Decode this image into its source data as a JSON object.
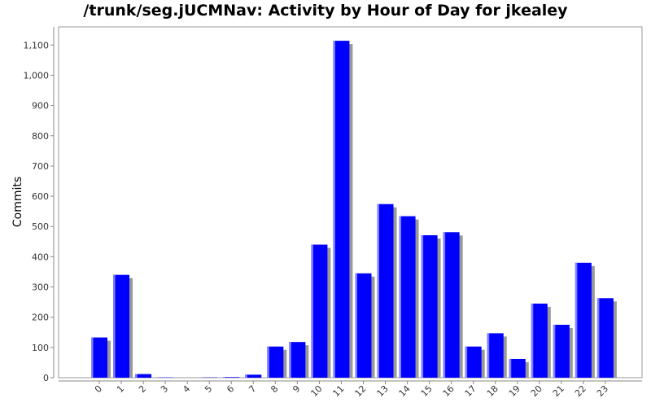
{
  "chart_data": {
    "type": "bar",
    "title": "/trunk/seg.jUCMNav: Activity by Hour of Day for jkealey",
    "xlabel": "",
    "ylabel": "Commits",
    "ylim": [
      0,
      1160
    ],
    "yticks": [
      0,
      100,
      200,
      300,
      400,
      500,
      600,
      700,
      800,
      900,
      1000,
      1100
    ],
    "ytick_labels": [
      "0",
      "100",
      "200",
      "300",
      "400",
      "500",
      "600",
      "700",
      "800",
      "900",
      "1,000",
      "1,100"
    ],
    "categories": [
      "0",
      "1",
      "2",
      "3",
      "4",
      "5",
      "6",
      "7",
      "8",
      "9",
      "10",
      "11",
      "12",
      "13",
      "14",
      "15",
      "16",
      "17",
      "18",
      "19",
      "20",
      "21",
      "22",
      "23"
    ],
    "values": [
      133,
      340,
      12,
      1,
      0,
      1,
      2,
      10,
      103,
      118,
      440,
      1114,
      345,
      574,
      534,
      471,
      481,
      103,
      147,
      62,
      245,
      175,
      380,
      263
    ],
    "grid": false,
    "bar_color": "#0000ff",
    "shadow_color": "#999999"
  }
}
